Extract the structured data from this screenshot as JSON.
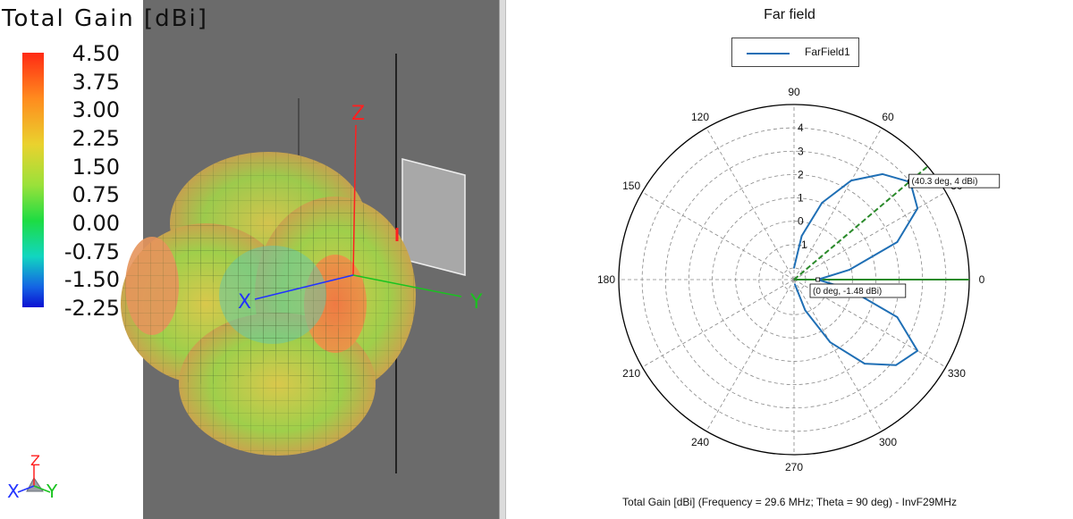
{
  "colorbar": {
    "title": "Total Gain [dBi]",
    "ticks": [
      "4.50",
      "3.75",
      "3.00",
      "2.25",
      "1.50",
      "0.75",
      "0.00",
      "-0.75",
      "-1.50",
      "-2.25"
    ]
  },
  "viewport3d": {
    "axis_labels": {
      "x": "X",
      "y": "Y",
      "z": "Z"
    },
    "triad": {
      "x": "X",
      "y": "Y",
      "z": "Z"
    }
  },
  "polar_plot": {
    "title": "Far field",
    "legend": "FarField1",
    "footer": "Total Gain [dBi] (Frequency = 29.6 MHz; Theta = 90 deg) - InvF29MHz",
    "colors": {
      "trace": "#1f6fb5",
      "marker_line": "#2a8a2a",
      "grid": "#888888"
    }
  },
  "chart_data": {
    "type": "polar",
    "title": "Far field",
    "radial_ticks": [
      "-1",
      "0",
      "1",
      "2",
      "3",
      "4"
    ],
    "rlim": [
      -2.5,
      5
    ],
    "angle_ticks": [
      "0",
      "30",
      "60",
      "90",
      "120",
      "150",
      "180",
      "210",
      "240",
      "270",
      "300",
      "330"
    ],
    "series": [
      {
        "name": "FarField1",
        "angle_deg": [
          -80,
          -70,
          -60,
          -50,
          -40,
          -30,
          -20,
          -10,
          0,
          10,
          20,
          30,
          40,
          50,
          60,
          70,
          80,
          90
        ],
        "gain_dbi": [
          -2.3,
          -1.1,
          0.6,
          2.2,
          3.2,
          3.6,
          2.2,
          -0.1,
          -1.48,
          -0.1,
          2.2,
          3.6,
          4.0,
          3.4,
          2.4,
          1.0,
          -0.6,
          -2.0
        ]
      }
    ],
    "markers": [
      {
        "label": "(40.3 deg, 4 dBi)",
        "angle_deg": 40.3,
        "gain_dbi": 4
      },
      {
        "label": "(0 deg, -1.48 dBi)",
        "angle_deg": 0,
        "gain_dbi": -1.48
      }
    ]
  }
}
